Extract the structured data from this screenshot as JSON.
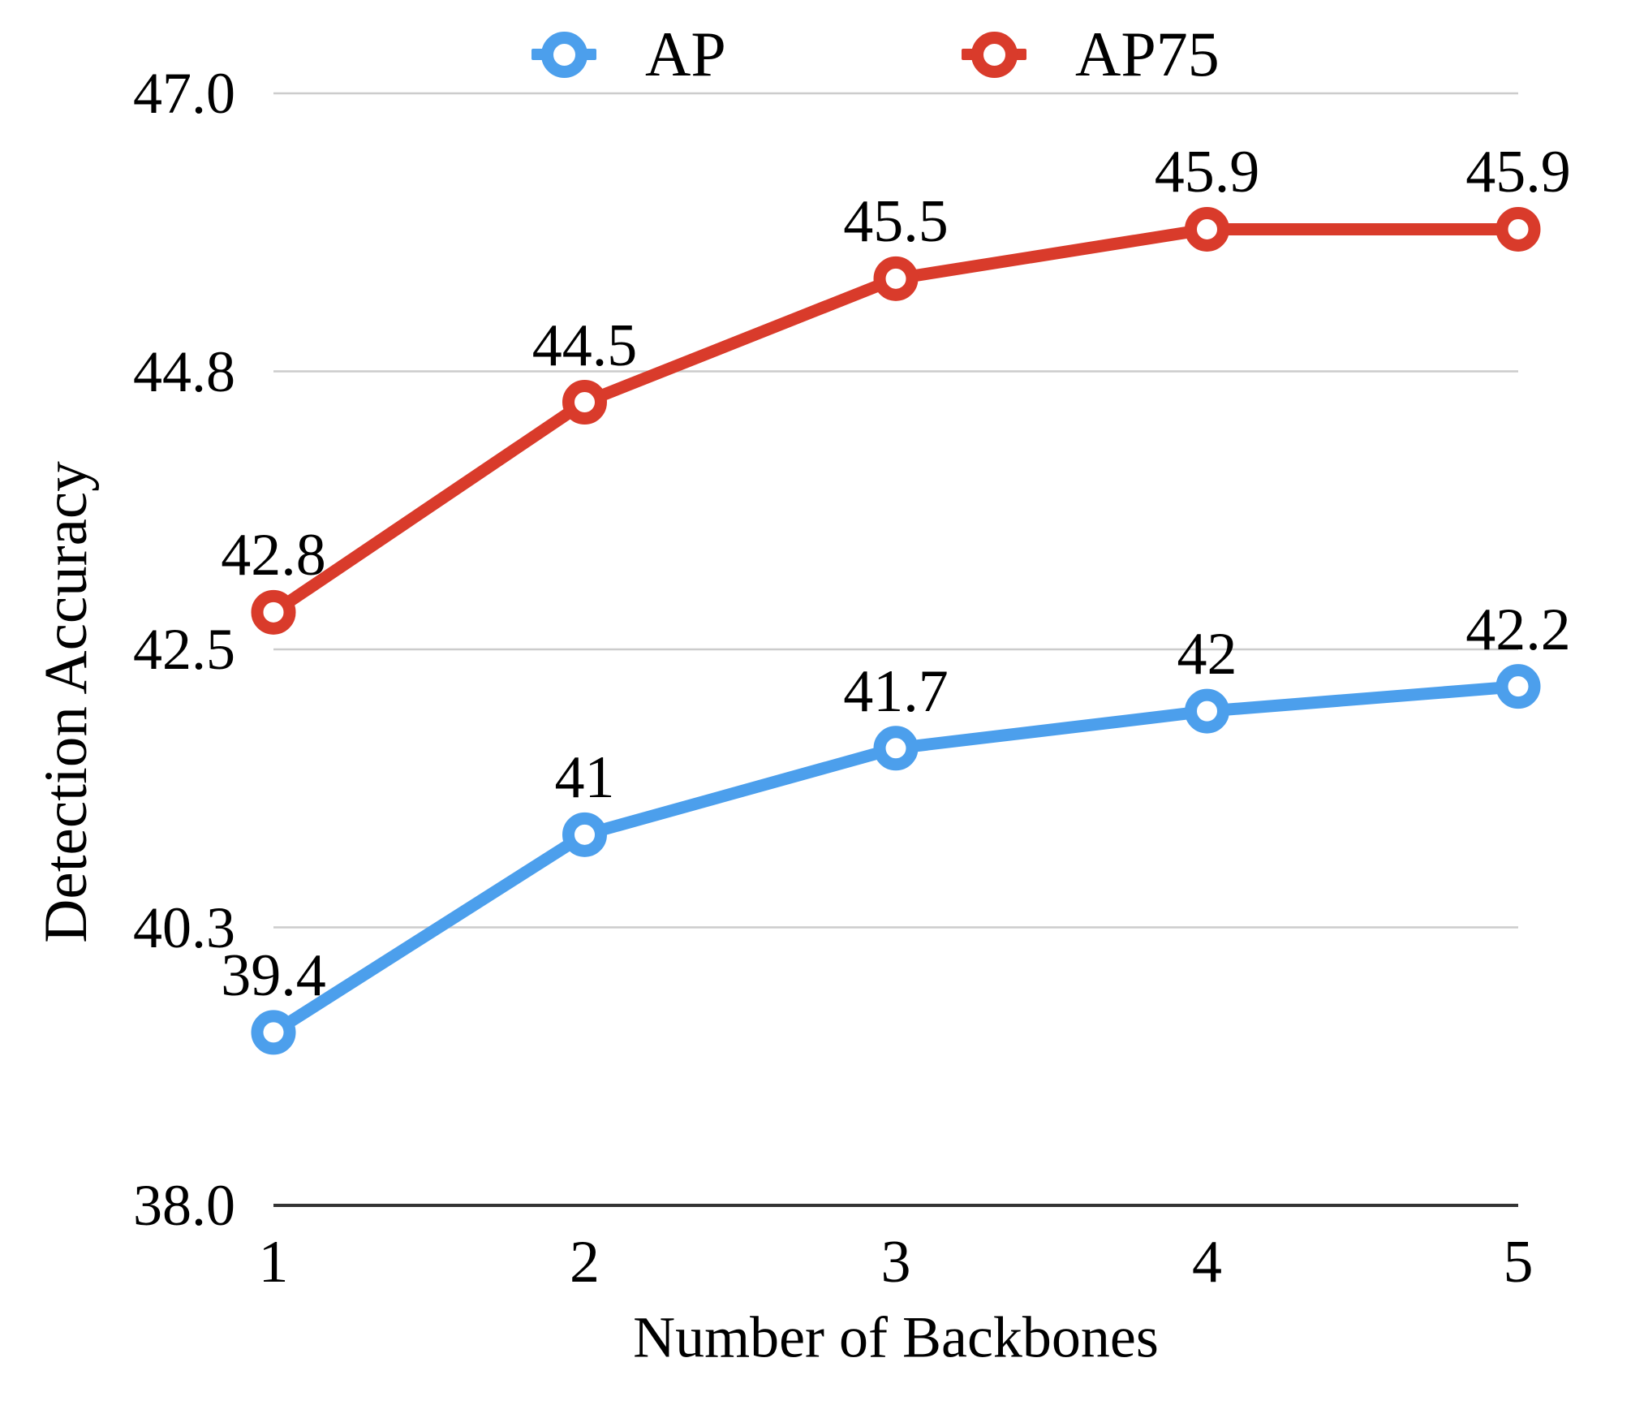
{
  "chart_data": {
    "type": "line",
    "title": "",
    "xlabel": "Number of Backbones",
    "ylabel": "Detection Accuracy",
    "x": [
      1,
      2,
      3,
      4,
      5
    ],
    "x_tick_labels": [
      "1",
      "2",
      "3",
      "4",
      "5"
    ],
    "y_ticks": [
      {
        "label": "47.0",
        "value": 47.0
      },
      {
        "label": "44.8",
        "value": 44.8
      },
      {
        "label": "42.5",
        "value": 42.5
      },
      {
        "label": "40.3",
        "value": 40.3
      },
      {
        "label": "38.0",
        "value": 38.0
      }
    ],
    "ylim": [
      38.0,
      47.0
    ],
    "grid": true,
    "legend_position": "top",
    "series": [
      {
        "name": "AP",
        "color": "#4C9FEC",
        "values": [
          39.4,
          41,
          41.7,
          42,
          42.2
        ],
        "point_labels": [
          "39.4",
          "41",
          "41.7",
          "42",
          "42.2"
        ]
      },
      {
        "name": "AP75",
        "color": "#D93B2B",
        "values": [
          42.8,
          44.5,
          45.5,
          45.9,
          45.9
        ],
        "point_labels": [
          "42.8",
          "44.5",
          "45.5",
          "45.9",
          "45.9"
        ]
      }
    ],
    "style": {
      "gridline_color": "#CCCCCC",
      "axis_line_color": "#333333",
      "text_color": "#000000",
      "marker_fill": "#FFFFFF"
    }
  }
}
